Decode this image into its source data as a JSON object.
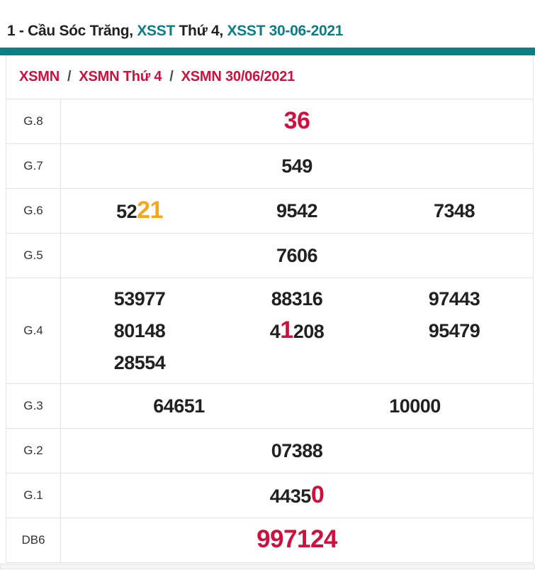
{
  "page": {
    "title": {
      "part1": "1 - Cầu Sóc Trăng, ",
      "part2": "XSST ",
      "part3": "Thứ 4, ",
      "part4": "XSST 30-06-2021"
    },
    "breadcrumb": {
      "items": [
        "XSMN",
        "XSMN Thứ 4",
        "XSMN 30/06/2021"
      ],
      "separator": "/"
    },
    "colors": {
      "teal": "#0b7e85",
      "red": "#d10f3e",
      "orange": "#f9a51a",
      "number": "#212121"
    }
  },
  "results": {
    "prize_rows": [
      {
        "label": "G.8",
        "columns": 1,
        "lines": [
          [
            [
              {
                "text": "36",
                "style": "red-big"
              }
            ]
          ]
        ]
      },
      {
        "label": "G.7",
        "columns": 1,
        "lines": [
          [
            [
              {
                "text": "549"
              }
            ]
          ]
        ]
      },
      {
        "label": "G.6",
        "columns": 3,
        "lines": [
          [
            [
              {
                "text": "52"
              },
              {
                "text": "21",
                "style": "orange-big"
              }
            ],
            [
              {
                "text": "9542"
              }
            ],
            [
              {
                "text": "7348"
              }
            ]
          ]
        ]
      },
      {
        "label": "G.5",
        "columns": 1,
        "lines": [
          [
            [
              {
                "text": "7606"
              }
            ]
          ]
        ]
      },
      {
        "label": "G.4",
        "columns": 3,
        "lines": [
          [
            [
              {
                "text": "53977"
              }
            ],
            [
              {
                "text": "88316"
              }
            ],
            [
              {
                "text": "97443"
              }
            ]
          ],
          [
            [
              {
                "text": "80148"
              }
            ],
            [
              {
                "text": "4"
              },
              {
                "text": "1",
                "style": "red-big"
              },
              {
                "text": "208"
              }
            ],
            [
              {
                "text": "95479"
              }
            ]
          ],
          [
            [
              {
                "text": "28554"
              }
            ]
          ]
        ]
      },
      {
        "label": "G.3",
        "columns": 2,
        "lines": [
          [
            [
              {
                "text": "64651"
              }
            ],
            [
              {
                "text": "10000"
              }
            ]
          ]
        ]
      },
      {
        "label": "G.2",
        "columns": 1,
        "lines": [
          [
            [
              {
                "text": "07388"
              }
            ]
          ]
        ]
      },
      {
        "label": "G.1",
        "columns": 1,
        "lines": [
          [
            [
              {
                "text": "4435"
              },
              {
                "text": "0",
                "style": "red-big"
              }
            ]
          ]
        ]
      },
      {
        "label": "DB6",
        "columns": 1,
        "lines": [
          [
            [
              {
                "text": "997124",
                "style": "red-jackpot"
              }
            ]
          ]
        ]
      }
    ]
  }
}
